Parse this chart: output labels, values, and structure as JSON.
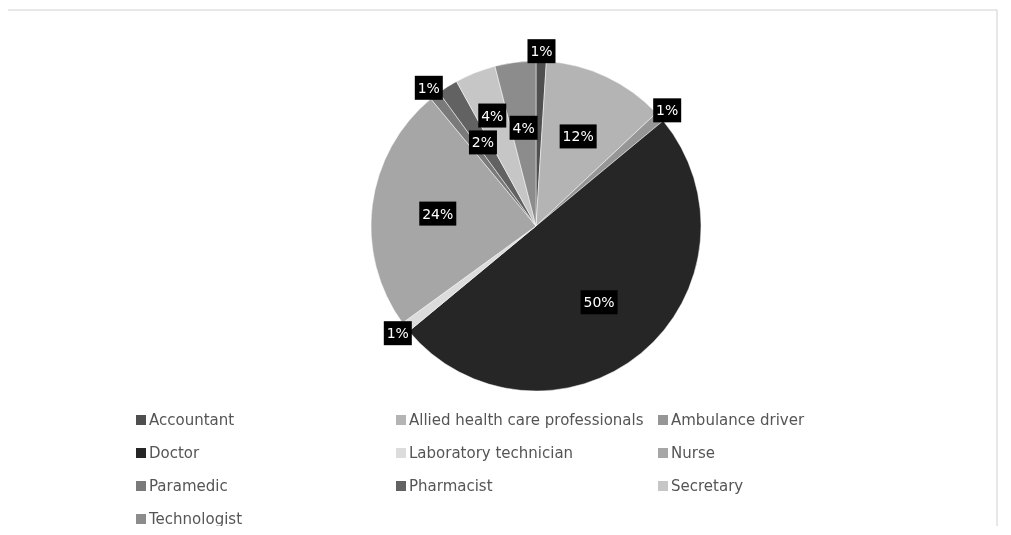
{
  "chart_data": {
    "type": "pie",
    "categories": [
      "Accountant",
      "Allied health care professionals",
      "Ambulance driver",
      "Doctor",
      "Laboratory technician",
      "Nurse",
      "Paramedic",
      "Pharmacist",
      "Secretary",
      "Technologist"
    ],
    "values": [
      1,
      12,
      1,
      50,
      1,
      24,
      1,
      2,
      4,
      4
    ],
    "colors": [
      "#4f4f4f",
      "#b4b4b4",
      "#969696",
      "#262626",
      "#dcdcdc",
      "#a6a6a6",
      "#7a7a7a",
      "#626262",
      "#c6c6c6",
      "#8c8c8c"
    ],
    "value_labels": [
      "1%",
      "12%",
      "1%",
      "50%",
      "1%",
      "24%",
      "1%",
      "2%",
      "4%",
      "4%"
    ],
    "legend": "bottom"
  }
}
